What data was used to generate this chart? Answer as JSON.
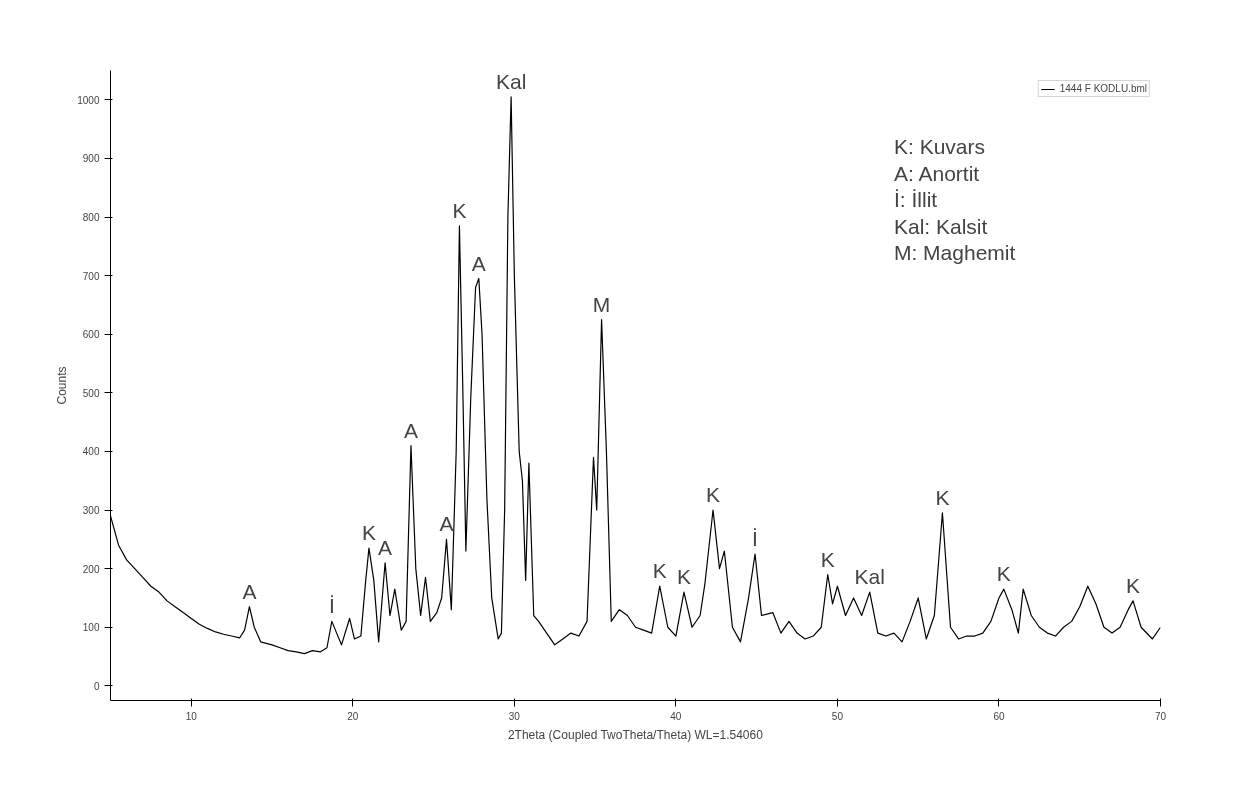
{
  "chart_data": {
    "type": "line",
    "xlabel": "2Theta (Coupled TwoTheta/Theta) WL=1.54060",
    "ylabel": "Counts",
    "xlim": [
      5,
      70
    ],
    "ylim": [
      -25,
      1050
    ],
    "xticks": [
      10,
      20,
      30,
      40,
      50,
      60,
      70
    ],
    "yticks": [
      0,
      100,
      200,
      300,
      400,
      500,
      600,
      700,
      800,
      900,
      1000
    ],
    "grid": false,
    "legend": "top right",
    "line_style": "solid",
    "marker": "none",
    "series": [
      {
        "name": "1444 F KODLU.bml",
        "color": "#000000",
        "x": [
          5,
          5.5,
          6,
          6.5,
          7,
          7.5,
          8,
          8.5,
          9,
          9.5,
          10,
          10.5,
          11,
          11.5,
          12,
          12.5,
          13,
          13.3,
          13.6,
          13.9,
          14.3,
          15,
          15.5,
          16,
          16.5,
          17,
          17.5,
          18,
          18.4,
          18.7,
          19,
          19.3,
          19.8,
          20.1,
          20.5,
          20.8,
          21,
          21.3,
          21.6,
          22,
          22.3,
          22.6,
          23,
          23.3,
          23.6,
          23.9,
          24.2,
          24.5,
          24.8,
          25.2,
          25.5,
          25.8,
          26.1,
          26.4,
          26.6,
          26.8,
          27,
          27.3,
          27.6,
          27.8,
          28,
          28.3,
          28.6,
          29,
          29.2,
          29.4,
          29.6,
          29.8,
          30,
          30.3,
          30.5,
          30.7,
          30.9,
          31.2,
          31.5,
          32,
          32.5,
          33,
          33.5,
          34,
          34.5,
          34.9,
          35.1,
          35.4,
          35.7,
          36,
          36.5,
          37,
          37.5,
          38,
          38.5,
          39,
          39.5,
          40,
          40.5,
          41,
          41.5,
          41.8,
          42.3,
          42.7,
          43,
          43.5,
          44,
          44.5,
          44.9,
          45.3,
          46,
          46.5,
          47,
          47.5,
          48,
          48.5,
          49,
          49.4,
          49.7,
          50,
          50.5,
          51,
          51.5,
          52,
          52.5,
          53,
          53.5,
          54,
          54.5,
          55,
          55.5,
          56,
          56.5,
          57,
          57.5,
          58,
          58.5,
          59,
          59.5,
          60,
          60.3,
          60.8,
          61.2,
          61.5,
          62,
          62.5,
          63,
          63.5,
          64,
          64.5,
          65,
          65.5,
          66,
          66.5,
          67,
          67.5,
          68,
          68.3,
          68.8,
          69.5,
          70
        ],
        "values": [
          290,
          240,
          215,
          200,
          185,
          170,
          160,
          145,
          135,
          125,
          115,
          105,
          98,
          92,
          88,
          85,
          82,
          95,
          135,
          100,
          75,
          70,
          65,
          60,
          58,
          55,
          60,
          58,
          65,
          110,
          90,
          70,
          115,
          80,
          85,
          180,
          235,
          180,
          75,
          210,
          120,
          165,
          95,
          110,
          410,
          200,
          120,
          185,
          110,
          125,
          150,
          250,
          130,
          400,
          785,
          520,
          230,
          490,
          680,
          695,
          600,
          320,
          150,
          80,
          90,
          300,
          800,
          1005,
          700,
          400,
          350,
          180,
          380,
          120,
          110,
          90,
          70,
          80,
          90,
          85,
          110,
          390,
          300,
          625,
          400,
          110,
          130,
          120,
          100,
          95,
          90,
          170,
          100,
          85,
          160,
          100,
          120,
          175,
          300,
          200,
          230,
          100,
          75,
          150,
          225,
          120,
          125,
          90,
          110,
          90,
          80,
          85,
          100,
          190,
          140,
          170,
          120,
          150,
          120,
          160,
          90,
          85,
          90,
          75,
          110,
          150,
          80,
          120,
          295,
          100,
          80,
          85,
          85,
          90,
          110,
          150,
          165,
          130,
          90,
          165,
          120,
          100,
          90,
          85,
          100,
          110,
          135,
          170,
          140,
          100,
          90,
          100,
          130,
          145,
          100,
          80,
          100
        ]
      }
    ],
    "annotations": [
      {
        "text": "A",
        "x": 13.6,
        "y": 135
      },
      {
        "text": "İ",
        "x": 18.7,
        "y": 110
      },
      {
        "text": "K",
        "x": 21,
        "y": 235
      },
      {
        "text": "A",
        "x": 22,
        "y": 210
      },
      {
        "text": "A",
        "x": 23.6,
        "y": 410
      },
      {
        "text": "A",
        "x": 25.8,
        "y": 250
      },
      {
        "text": "K",
        "x": 26.6,
        "y": 785
      },
      {
        "text": "A",
        "x": 27.8,
        "y": 695
      },
      {
        "text": "Kal",
        "x": 29.8,
        "y": 1005
      },
      {
        "text": "M",
        "x": 35.4,
        "y": 625
      },
      {
        "text": "K",
        "x": 39,
        "y": 170
      },
      {
        "text": "K",
        "x": 40.5,
        "y": 160
      },
      {
        "text": "K",
        "x": 42.3,
        "y": 300
      },
      {
        "text": "İ",
        "x": 44.9,
        "y": 225
      },
      {
        "text": "K",
        "x": 49.4,
        "y": 190
      },
      {
        "text": "Kal",
        "x": 52,
        "y": 160
      },
      {
        "text": "K",
        "x": 56.5,
        "y": 295
      },
      {
        "text": "K",
        "x": 60.3,
        "y": 165
      },
      {
        "text": "K",
        "x": 68.3,
        "y": 145
      },
      "K: Kuvars",
      "A: Anortit",
      "İ: İllit",
      "Kal: Kalsit",
      "M: Maghemit"
    ]
  }
}
